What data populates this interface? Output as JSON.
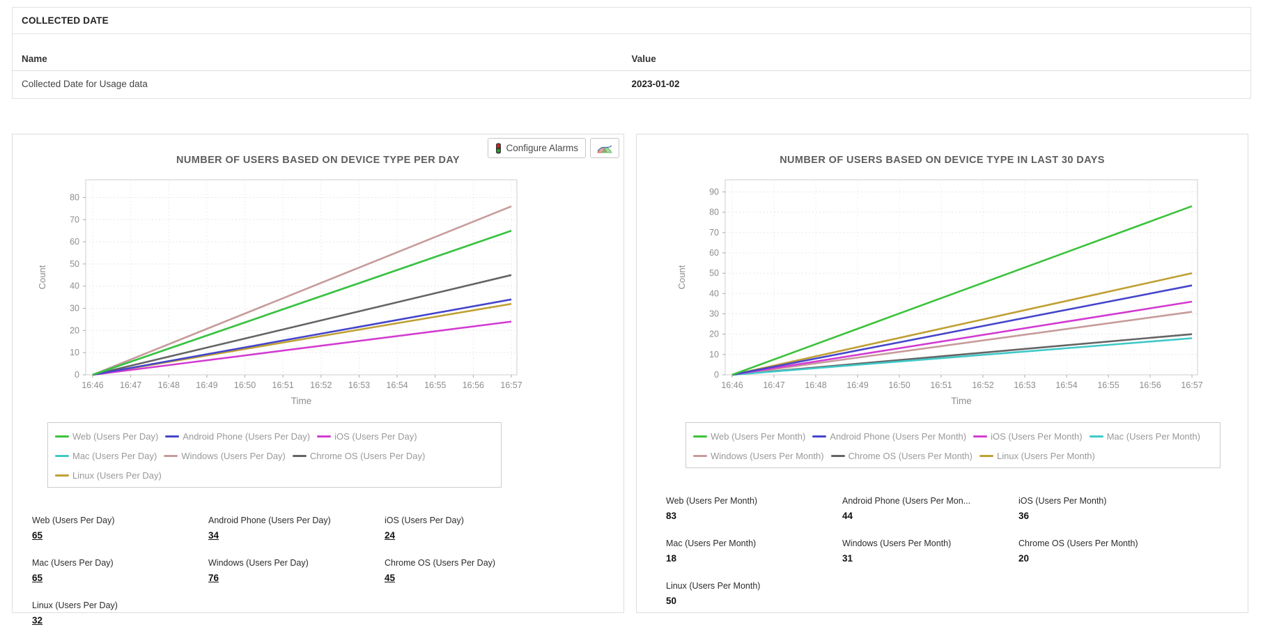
{
  "table": {
    "title": "COLLECTED DATE",
    "columns": [
      "Name",
      "Value"
    ],
    "rows": [
      {
        "name": "Collected Date for Usage data",
        "value": "2023-01-02"
      }
    ]
  },
  "toolbar": {
    "configure_alarms_label": "Configure Alarms",
    "traffic_light_icon_colors": {
      "red": "#cc2222",
      "green": "#2a9a2a"
    },
    "chart_icon_colors": {
      "red": "#d9534f",
      "green": "#5cb85c",
      "blue": "#4a7ebb"
    }
  },
  "chart_data": [
    {
      "type": "line",
      "title": "NUMBER OF USERS BASED ON DEVICE TYPE PER DAY",
      "xlabel": "Time",
      "ylabel": "Count",
      "x_ticks": [
        "16:46",
        "16:47",
        "16:48",
        "16:49",
        "16:50",
        "16:51",
        "16:52",
        "16:53",
        "16:54",
        "16:55",
        "16:56",
        "16:57"
      ],
      "y_ticks": [
        0,
        10,
        20,
        30,
        40,
        50,
        60,
        70,
        80
      ],
      "y_max": 88,
      "grid": true,
      "legend_position": "bottom",
      "series": [
        {
          "name": "Web (Users Per Day)",
          "color": "#3cc23c",
          "start": 0,
          "end": 65
        },
        {
          "name": "Android Phone (Users Per Day)",
          "color": "#4545cb",
          "start": 0,
          "end": 34
        },
        {
          "name": "iOS (Users Per Day)",
          "color": "#d23bd2",
          "start": 0,
          "end": 24
        },
        {
          "name": "Mac (Users Per Day)",
          "color": "#3fc8c8",
          "start": 0,
          "end": 65
        },
        {
          "name": "Windows (Users Per Day)",
          "color": "#c79b9b",
          "start": 0,
          "end": 76
        },
        {
          "name": "Chrome OS (Users Per Day)",
          "color": "#646464",
          "start": 0,
          "end": 45
        },
        {
          "name": "Linux (Users Per Day)",
          "color": "#bfa033",
          "start": 0,
          "end": 32
        }
      ],
      "values": [
        {
          "label": "Web (Users Per Day)",
          "value": "65",
          "link": true
        },
        {
          "label": "Android Phone (Users Per Day)",
          "value": "34",
          "link": true
        },
        {
          "label": "iOS (Users Per Day)",
          "value": "24",
          "link": true
        },
        {
          "label": "Mac (Users Per Day)",
          "value": "65",
          "link": true
        },
        {
          "label": "Windows (Users Per Day)",
          "value": "76",
          "link": true
        },
        {
          "label": "Chrome OS (Users Per Day)",
          "value": "45",
          "link": true
        },
        {
          "label": "Linux (Users Per Day)",
          "value": "32",
          "link": true
        }
      ]
    },
    {
      "type": "line",
      "title": "NUMBER OF USERS BASED ON DEVICE TYPE IN LAST 30 DAYS",
      "xlabel": "Time",
      "ylabel": "Count",
      "x_ticks": [
        "16:46",
        "16:47",
        "16:48",
        "16:49",
        "16:50",
        "16:51",
        "16:52",
        "16:53",
        "16:54",
        "16:55",
        "16:56",
        "16:57"
      ],
      "y_ticks": [
        0,
        10,
        20,
        30,
        40,
        50,
        60,
        70,
        80,
        90
      ],
      "y_max": 96,
      "grid": true,
      "legend_position": "bottom",
      "series": [
        {
          "name": "Web (Users Per Month)",
          "color": "#3cc23c",
          "start": 0,
          "end": 83
        },
        {
          "name": "Android Phone (Users Per Month)",
          "color": "#4545cb",
          "start": 0,
          "end": 44
        },
        {
          "name": "iOS (Users Per Month)",
          "color": "#d23bd2",
          "start": 0,
          "end": 36
        },
        {
          "name": "Mac (Users Per Month)",
          "color": "#3fc8c8",
          "start": 0,
          "end": 18
        },
        {
          "name": "Windows (Users Per Month)",
          "color": "#c79b9b",
          "start": 0,
          "end": 31
        },
        {
          "name": "Chrome OS (Users Per Month)",
          "color": "#646464",
          "start": 0,
          "end": 20
        },
        {
          "name": "Linux (Users Per Month)",
          "color": "#bfa033",
          "start": 0,
          "end": 50
        }
      ],
      "values": [
        {
          "label": "Web (Users Per Month)",
          "value": "83",
          "link": false
        },
        {
          "label": "Android Phone (Users Per Mon...",
          "value": "44",
          "link": false
        },
        {
          "label": "iOS (Users Per Month)",
          "value": "36",
          "link": false
        },
        {
          "label": "Mac (Users Per Month)",
          "value": "18",
          "link": false
        },
        {
          "label": "Windows (Users Per Month)",
          "value": "31",
          "link": false
        },
        {
          "label": "Chrome OS (Users Per Month)",
          "value": "20",
          "link": false
        },
        {
          "label": "Linux (Users Per Month)",
          "value": "50",
          "link": false
        }
      ]
    }
  ]
}
